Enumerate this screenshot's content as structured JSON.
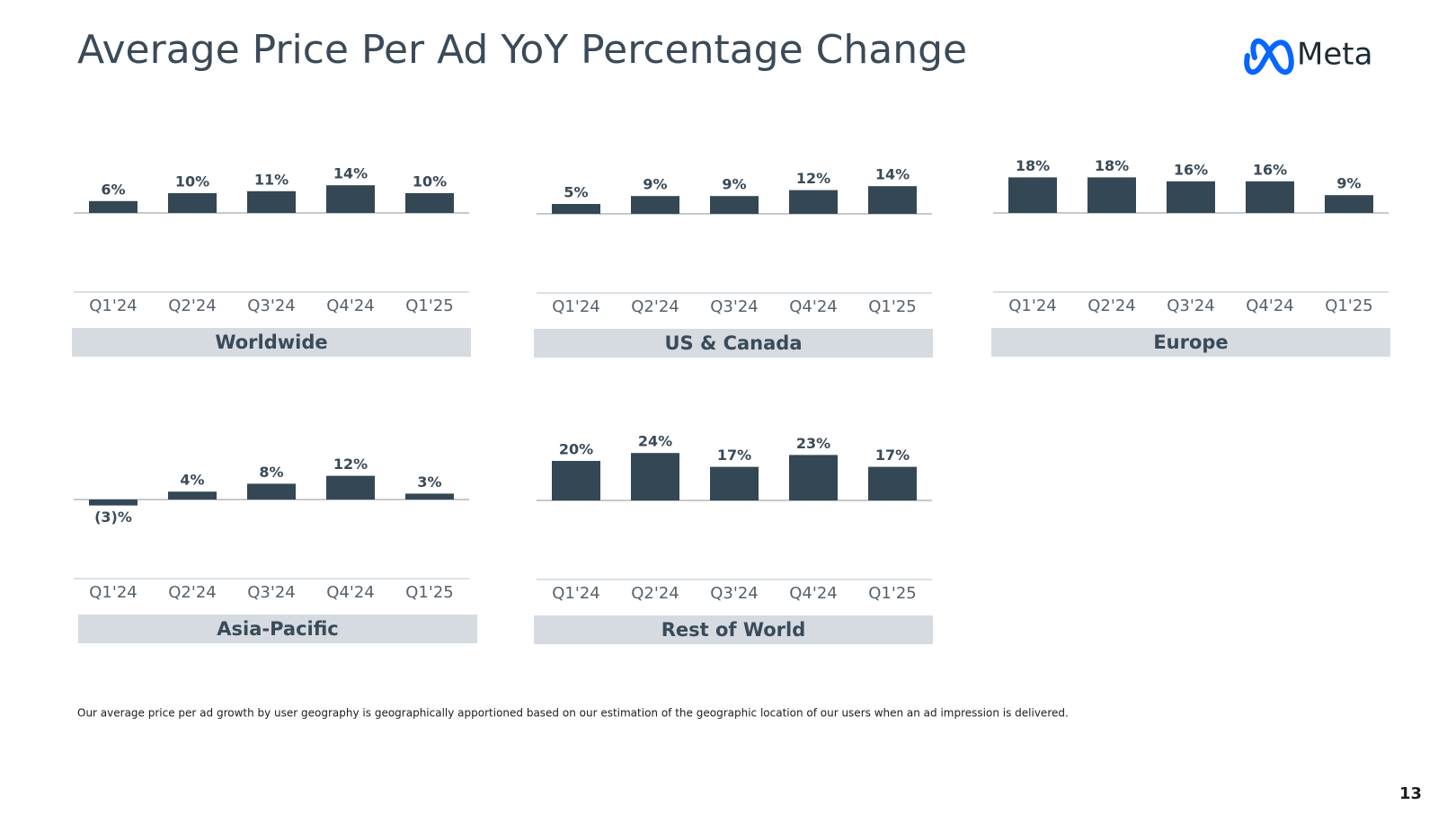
{
  "title": "Average Price Per Ad YoY Percentage Change",
  "logo": "Meta",
  "footnote": "Our average price per ad growth by user geography is geographically apportioned based on our estimation of the geographic location of our users when an ad impression is delivered.",
  "page_number": "13",
  "chart_data": [
    {
      "type": "bar",
      "title": "Worldwide",
      "color": "#344754",
      "categories": [
        "Q1'24",
        "Q2'24",
        "Q3'24",
        "Q4'24",
        "Q1'25"
      ],
      "values": [
        6,
        10,
        11,
        14,
        10
      ],
      "value_labels": [
        "6%",
        "10%",
        "11%",
        "14%",
        "10%"
      ]
    },
    {
      "type": "bar",
      "title": "US & Canada",
      "color": "#344754",
      "categories": [
        "Q1'24",
        "Q2'24",
        "Q3'24",
        "Q4'24",
        "Q1'25"
      ],
      "values": [
        5,
        9,
        9,
        12,
        14
      ],
      "value_labels": [
        "5%",
        "9%",
        "9%",
        "12%",
        "14%"
      ]
    },
    {
      "type": "bar",
      "title": "Europe",
      "color": "#344754",
      "categories": [
        "Q1'24",
        "Q2'24",
        "Q3'24",
        "Q4'24",
        "Q1'25"
      ],
      "values": [
        18,
        18,
        16,
        16,
        9
      ],
      "value_labels": [
        "18%",
        "18%",
        "16%",
        "16%",
        "9%"
      ]
    },
    {
      "type": "bar",
      "title": "Asia-Pacific",
      "color": "#344754",
      "categories": [
        "Q1'24",
        "Q2'24",
        "Q3'24",
        "Q4'24",
        "Q1'25"
      ],
      "values": [
        -3,
        4,
        8,
        12,
        3
      ],
      "value_labels": [
        "(3)%",
        "4%",
        "8%",
        "12%",
        "3%"
      ]
    },
    {
      "type": "bar",
      "title": "Rest of World",
      "color": "#344754",
      "categories": [
        "Q1'24",
        "Q2'24",
        "Q3'24",
        "Q4'24",
        "Q1'25"
      ],
      "values": [
        20,
        24,
        17,
        23,
        17
      ],
      "value_labels": [
        "20%",
        "24%",
        "17%",
        "23%",
        "17%"
      ]
    }
  ]
}
